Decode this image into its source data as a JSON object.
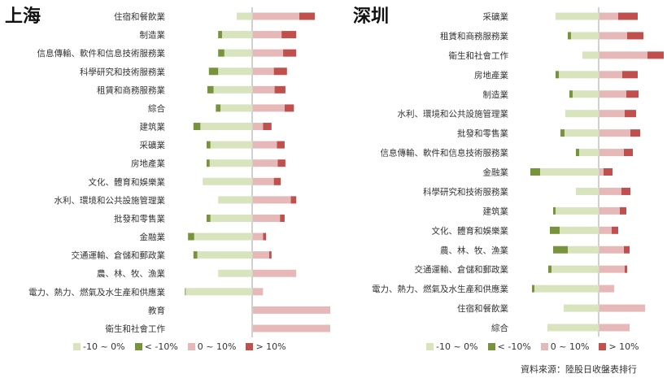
{
  "colors": {
    "neg_small": "#d7e4bd",
    "neg_large": "#77933c",
    "pos_small": "#e6b9b8",
    "pos_large": "#c0504d",
    "axis": "#a0a0a0"
  },
  "legend": [
    "-10 ~ 0%",
    "< -10%",
    "0 ~ 10%",
    "> 10%"
  ],
  "source": "資料來源：陸股日收盤表排行",
  "chart_data": [
    {
      "type": "bar",
      "title": "上海",
      "orientation": "horizontal-diverging-stacked",
      "unit": "%",
      "categories": [
        "住宿和餐飲業",
        "制造業",
        "信息傳輸、軟件和信息技術服務業",
        "科學研究和技術服務業",
        "租賃和商務服務業",
        "綜合",
        "建筑業",
        "采礦業",
        "房地產業",
        "文化、體育和娛樂業",
        "水利、環境和公共設施管理業",
        "批發和零售業",
        "金融業",
        "交通運輸、倉儲和郵政業",
        "農、林、牧、漁業",
        "電力、熱力、燃氣及水生產和供應業",
        "教育",
        "衛生和社會工作"
      ],
      "series": [
        {
          "name": "< -10%",
          "values": [
            0,
            5,
            8,
            12,
            8,
            6,
            9,
            5,
            4,
            0,
            0,
            5,
            8,
            5,
            0,
            1,
            0,
            0
          ]
        },
        {
          "name": "-10 ~ 0%",
          "values": [
            20,
            39,
            36,
            44,
            50,
            41,
            67,
            54,
            55,
            64,
            44,
            54,
            75,
            71,
            44,
            86,
            0,
            0
          ]
        },
        {
          "name": "0 ~ 10%",
          "values": [
            60,
            37,
            39,
            27,
            28,
            41,
            13,
            31,
            32,
            27,
            49,
            35,
            13,
            21,
            56,
            13,
            100,
            100
          ]
        },
        {
          "name": "> 10%",
          "values": [
            20,
            19,
            17,
            17,
            14,
            12,
            11,
            10,
            10,
            9,
            7,
            6,
            4,
            3,
            0,
            0,
            0,
            0
          ]
        }
      ]
    },
    {
      "type": "bar",
      "title": "深圳",
      "orientation": "horizontal-diverging-stacked",
      "unit": "%",
      "categories": [
        "采礦業",
        "租賃和商務服務業",
        "衛生和社會工作",
        "房地產業",
        "制造業",
        "水利、環境和公共設施管理業",
        "批發和零售業",
        "信息傳輸、軟件和信息技術服務業",
        "金融業",
        "科學研究和技術服務業",
        "建筑業",
        "文化、體育和娛樂業",
        "農、林、牧、漁業",
        "交通運輸、倉儲和郵政業",
        "電力、熱力、燃氣及水生產和供應業",
        "住宿和餐飲業",
        "綜合"
      ],
      "series": [
        {
          "name": "< -10%",
          "values": [
            0,
            4,
            0,
            4,
            4,
            0,
            5,
            4,
            12,
            0,
            3,
            12,
            18,
            4,
            3,
            0,
            0
          ]
        },
        {
          "name": "-10 ~ 0%",
          "values": [
            53,
            34,
            20,
            49,
            32,
            41,
            42,
            24,
            72,
            28,
            53,
            48,
            38,
            58,
            79,
            43,
            63
          ]
        },
        {
          "name": "0 ~ 10%",
          "values": [
            23,
            34,
            59,
            28,
            33,
            31,
            38,
            30,
            5,
            27,
            25,
            15,
            30,
            31,
            18,
            56,
            37
          ]
        },
        {
          "name": "> 10%",
          "values": [
            24,
            20,
            20,
            19,
            15,
            14,
            12,
            11,
            11,
            11,
            8,
            8,
            7,
            3,
            0,
            0,
            0
          ]
        }
      ]
    }
  ]
}
